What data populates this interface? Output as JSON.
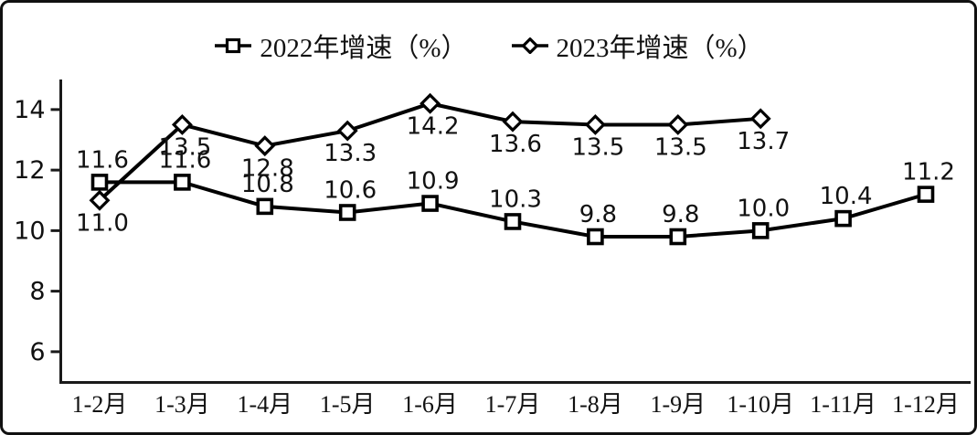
{
  "chart_data": {
    "type": "line",
    "categories": [
      "1-2月",
      "1-3月",
      "1-4月",
      "1-5月",
      "1-6月",
      "1-7月",
      "1-8月",
      "1-9月",
      "1-10月",
      "1-11月",
      "1-12月"
    ],
    "series": [
      {
        "name": "2022年增速（%）",
        "marker": "square",
        "label_position": "above",
        "values": [
          11.6,
          11.6,
          10.8,
          10.6,
          10.9,
          10.3,
          9.8,
          9.8,
          10.0,
          10.4,
          11.2
        ]
      },
      {
        "name": "2023年增速（%）",
        "marker": "diamond",
        "label_position": "below",
        "values": [
          11.0,
          13.5,
          12.8,
          13.3,
          14.2,
          13.6,
          13.5,
          13.5,
          13.7
        ]
      }
    ],
    "ylim": [
      5,
      15
    ],
    "yticks": [
      14,
      12,
      10,
      8,
      6
    ],
    "grid": false,
    "legend_position": "top",
    "value_labels": true,
    "value_label_decimals": 1,
    "line_color": "#000000",
    "marker_fill": "#ffffff",
    "background": "#ffffff"
  }
}
